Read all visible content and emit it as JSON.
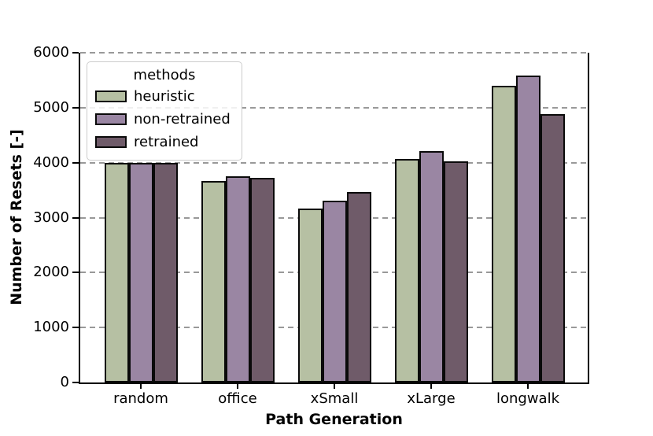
{
  "figure": {
    "background": "#ffffff",
    "spine_color": "#000000",
    "grid_color": "#999999",
    "bar_edge_color": "#0a0a0a"
  },
  "chart_data": {
    "type": "bar",
    "title": "",
    "xlabel": "Path Generation",
    "ylabel": "Number of Resets [-]",
    "categories": [
      "random",
      "office",
      "xSmall",
      "xLarge",
      "longwalk"
    ],
    "series": [
      {
        "name": "heuristic",
        "color": "#b6c0a3",
        "values": [
          4000,
          3670,
          3160,
          4060,
          5400
        ]
      },
      {
        "name": "non-retrained",
        "color": "#9a86a3",
        "values": [
          4000,
          3750,
          3310,
          4210,
          5590
        ]
      },
      {
        "name": "retrained",
        "color": "#6f5b69",
        "values": [
          4000,
          3725,
          3460,
          4020,
          4890
        ]
      }
    ],
    "ylim": [
      0,
      6000
    ],
    "yticks": [
      0,
      1000,
      2000,
      3000,
      4000,
      5000,
      6000
    ],
    "grid": "dashed-horizontal",
    "legend": {
      "title": "methods",
      "position": "upper-left"
    }
  }
}
